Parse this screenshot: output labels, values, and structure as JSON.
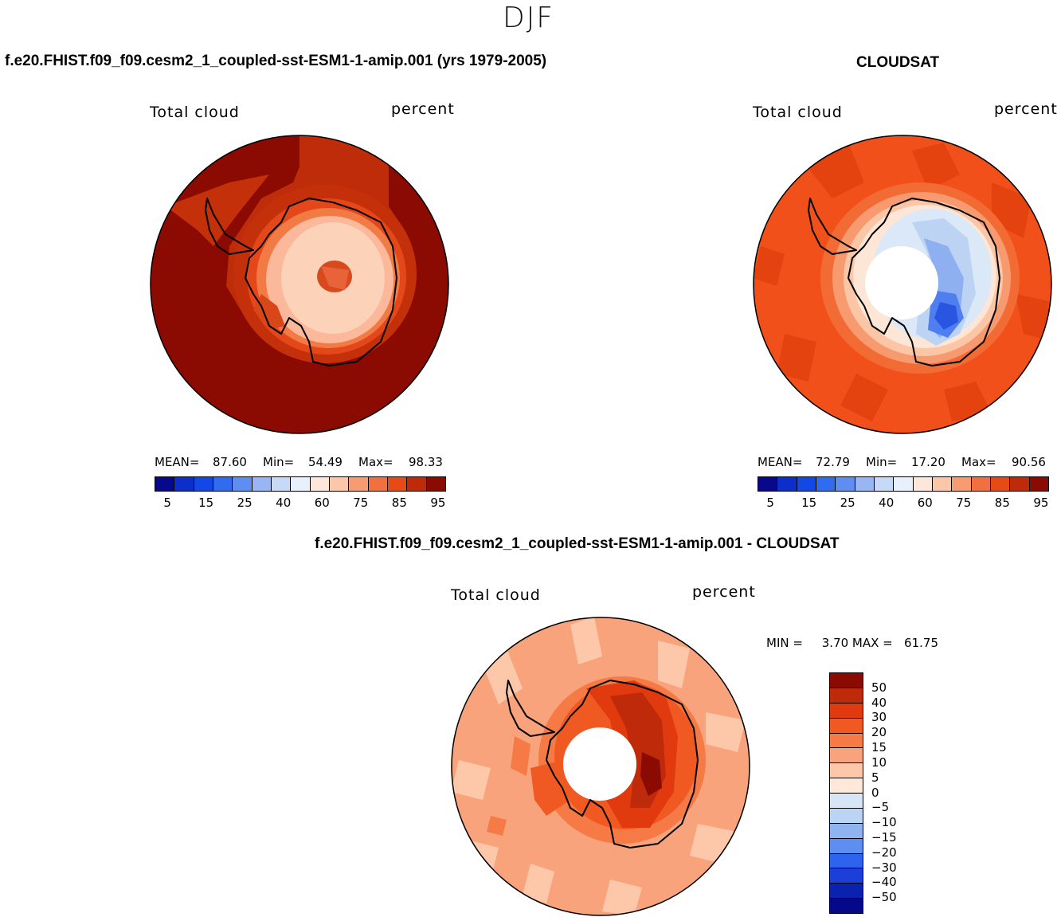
{
  "season": "DJF",
  "palette_abs": [
    "#08088c",
    "#0c2fcc",
    "#1448e6",
    "#2f6cf0",
    "#5f8ef2",
    "#97b6f3",
    "#c6d9f6",
    "#e8f1fb",
    "#fde7d9",
    "#fcc6a8",
    "#f79c72",
    "#f2703f",
    "#e84a16",
    "#bf2a0a",
    "#8b0a02"
  ],
  "panels": [
    {
      "title": "f.e20.FHIST.f09_f09.cesm2_1_coupled-sst-ESM1-1-amip.001 (yrs 1979-2005)",
      "var_label": "Total cloud",
      "units": "percent",
      "mean_label": "MEAN=",
      "mean": "87.60",
      "min_label": "Min=",
      "min": "54.49",
      "max_label": "Max=",
      "max": "98.33",
      "ticks": [
        "5",
        "15",
        "25",
        "40",
        "60",
        "75",
        "85",
        "95"
      ]
    },
    {
      "title": "CLOUDSAT",
      "var_label": "Total cloud",
      "units": "percent",
      "mean_label": "MEAN=",
      "mean": "72.79",
      "min_label": "Min=",
      "min": "17.20",
      "max_label": "Max=",
      "max": "90.56",
      "ticks": [
        "5",
        "15",
        "25",
        "40",
        "60",
        "75",
        "85",
        "95"
      ]
    }
  ],
  "diff": {
    "title": "f.e20.FHIST.f09_f09.cesm2_1_coupled-sst-ESM1-1-amip.001 - CLOUDSAT",
    "var_label": "Total cloud",
    "units": "percent",
    "minmax_text": "MIN =     3.70 MAX =   61.75",
    "ticks": [
      "50",
      "40",
      "30",
      "20",
      "15",
      "10",
      "5",
      "0",
      "−5",
      "−10",
      "−15",
      "−20",
      "−30",
      "−40",
      "−50"
    ],
    "palette": [
      "#8b0a02",
      "#bf2a0a",
      "#e03a0e",
      "#f05a22",
      "#f57a45",
      "#f9a37c",
      "#fcc8a9",
      "#fde8d9",
      "#d7e6f7",
      "#bcd4f3",
      "#8fb3f0",
      "#5f8ef2",
      "#2e63ee",
      "#1b3fd8",
      "#0a22b0",
      "#06088a"
    ]
  }
}
